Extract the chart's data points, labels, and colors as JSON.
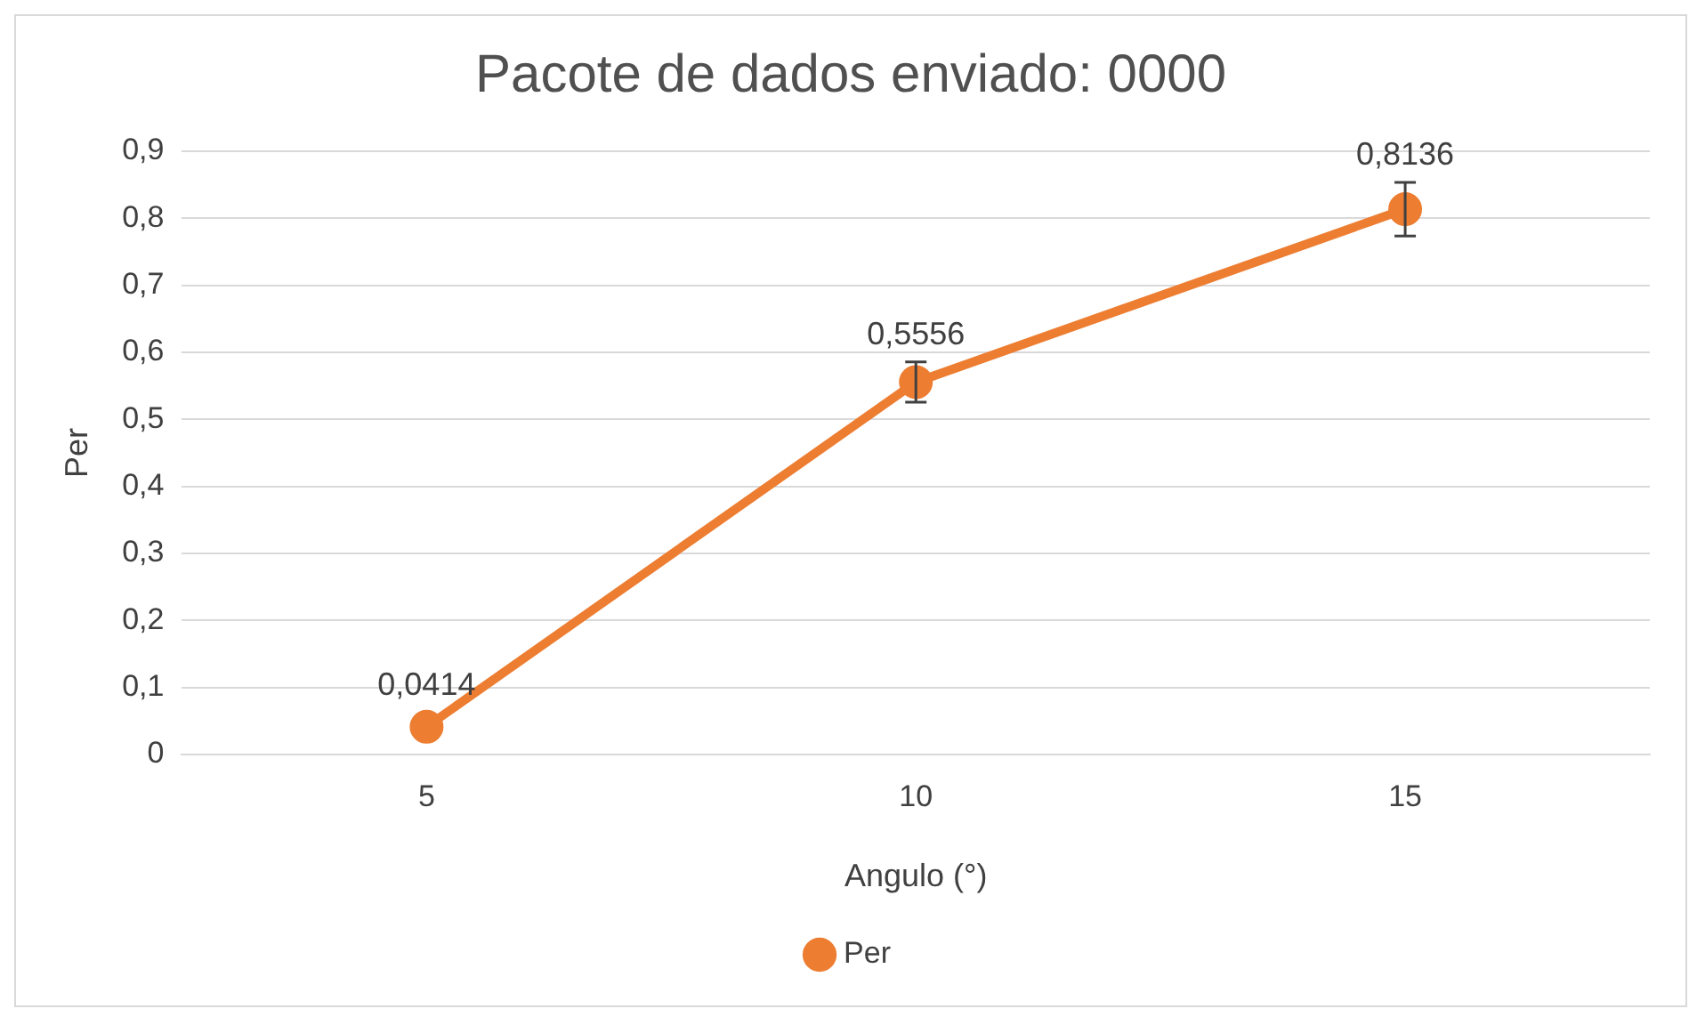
{
  "chart_data": {
    "type": "line",
    "title": "Pacote de dados enviado: 0000",
    "xlabel": "Angulo (°)",
    "ylabel": "Per",
    "categories": [
      "5",
      "10",
      "15"
    ],
    "series": [
      {
        "name": "Per",
        "color": "#ed7d31",
        "values": [
          0.0414,
          0.5556,
          0.8136
        ],
        "errors": [
          null,
          0.03,
          0.04
        ],
        "value_labels": [
          "0,0414",
          "0,5556",
          "0,8136"
        ]
      }
    ],
    "ylim": [
      0,
      0.9
    ],
    "yticks": [
      0,
      {
        "value": 0.1,
        "label": "0,1"
      },
      {
        "value": 0.2,
        "label": "0,2"
      },
      {
        "value": 0.3,
        "label": "0,3"
      },
      {
        "value": 0.4,
        "label": "0,4"
      },
      {
        "value": 0.5,
        "label": "0,5"
      },
      {
        "value": 0.6,
        "label": "0,6"
      },
      {
        "value": 0.7,
        "label": "0,7"
      },
      {
        "value": 0.8,
        "label": "0,8"
      },
      {
        "value": 0.9,
        "label": "0,9"
      }
    ],
    "grid": "y",
    "legend": "bottom",
    "marker": "circle",
    "line_style": "solid"
  }
}
